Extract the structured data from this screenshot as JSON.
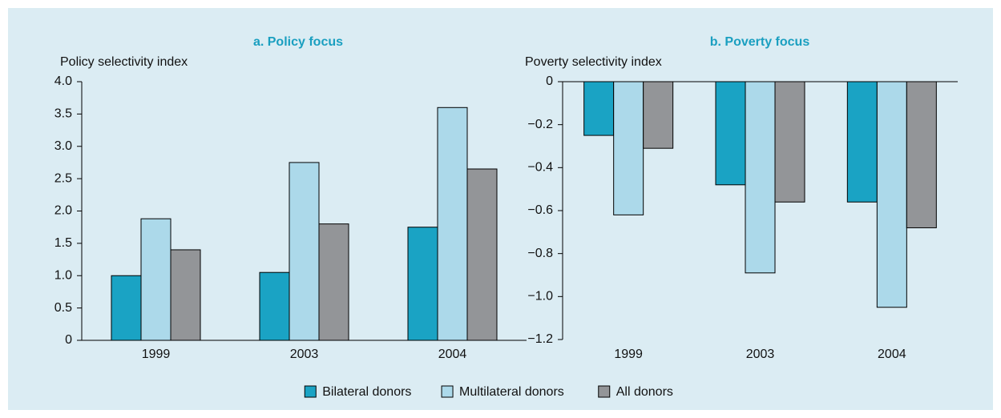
{
  "chart_data": [
    {
      "type": "bar",
      "title": "a. Policy focus",
      "y_label": "Policy selectivity index",
      "categories": [
        "1999",
        "2003",
        "2004"
      ],
      "series": [
        {
          "name": "Bilateral donors",
          "color": "#1aa3c4",
          "values": [
            1.0,
            1.05,
            1.75
          ]
        },
        {
          "name": "Multilateral donors",
          "color": "#acd9ea",
          "values": [
            1.88,
            2.75,
            3.6
          ]
        },
        {
          "name": "All donors",
          "color": "#939598",
          "values": [
            1.4,
            1.8,
            2.65
          ]
        }
      ],
      "ylim": [
        0,
        4
      ],
      "yticks": [
        0,
        {
          "value": 0.5,
          "label": "0.5"
        },
        {
          "value": 1,
          "label": "1.0"
        },
        {
          "value": 1.5,
          "label": "1.5"
        },
        {
          "value": 2,
          "label": "2.0"
        },
        {
          "value": 2.5,
          "label": "2.5"
        },
        {
          "value": 3,
          "label": "3.0"
        },
        {
          "value": 3.5,
          "label": "3.5"
        },
        {
          "value": 4,
          "label": "4.0"
        }
      ]
    },
    {
      "type": "bar",
      "title": "b. Poverty focus",
      "y_label": "Poverty selectivity index",
      "categories": [
        "1999",
        "2003",
        "2004"
      ],
      "series": [
        {
          "values": [
            -0.25,
            -0.48,
            -0.56
          ]
        },
        {
          "values": [
            -0.62,
            -0.89,
            -1.05
          ]
        },
        {
          "values": [
            -0.31,
            -0.56,
            -0.68
          ]
        }
      ],
      "ylim": [
        -1.2,
        0
      ],
      "yticks": [
        0,
        {
          "value": -0.2,
          "label": "−0.2"
        },
        {
          "value": -0.4,
          "label": "−0.4"
        },
        {
          "value": -0.6,
          "label": "−0.6"
        },
        {
          "value": -0.8,
          "label": "−0.8"
        },
        {
          "value": -1,
          "label": "−1.0"
        },
        {
          "value": -1.2,
          "label": "−1.2"
        }
      ]
    }
  ]
}
